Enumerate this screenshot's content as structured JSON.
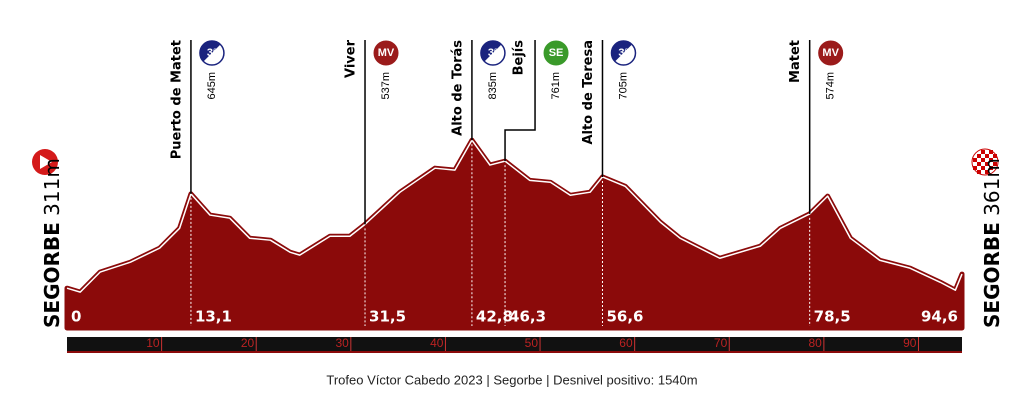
{
  "chart_data": {
    "type": "area",
    "color": "#8b0a0a",
    "xlim": [
      0,
      94.6
    ],
    "ylim": [
      170,
      1190
    ],
    "x": [
      0,
      1.4,
      3.5,
      6.7,
      9.8,
      11.9,
      13.1,
      15.1,
      17.2,
      19.3,
      21.5,
      23.6,
      24.6,
      27.8,
      29.9,
      31.5,
      35.2,
      38.9,
      41.0,
      42.8,
      44.7,
      46.3,
      48.9,
      51.1,
      53.2,
      55.3,
      56.6,
      59.0,
      62.7,
      64.8,
      69.0,
      73.3,
      75.4,
      78.5,
      80.4,
      82.8,
      85.9,
      89.1,
      92.3,
      93.9,
      94.6
    ],
    "values": [
      311,
      297,
      368,
      403,
      453,
      523,
      645,
      570,
      559,
      488,
      481,
      438,
      428,
      495,
      495,
      537,
      651,
      736,
      729,
      835,
      747,
      761,
      693,
      686,
      640,
      651,
      705,
      672,
      545,
      488,
      417,
      460,
      523,
      574,
      637,
      488,
      410,
      382,
      332,
      304,
      361
    ],
    "xticks": [
      10,
      20,
      30,
      40,
      50,
      60,
      70,
      80,
      90
    ],
    "start": {
      "name": "SEGORBE",
      "elevation": {
        "value": 311,
        "label": "311m"
      }
    },
    "finish": {
      "name": "SEGORBE",
      "elevation": {
        "value": 361,
        "label": "361m"
      }
    },
    "km_labels": [
      {
        "value": 0,
        "label": "0"
      },
      {
        "value": 13.1,
        "label": "13,1"
      },
      {
        "value": 31.5,
        "label": "31,5"
      },
      {
        "value": 42.8,
        "label": "42,8"
      },
      {
        "value": 46.3,
        "label": "46,3"
      },
      {
        "value": 56.6,
        "label": "56,6"
      },
      {
        "value": 78.5,
        "label": "78,5"
      },
      {
        "value": 94.6,
        "label": "94,6"
      }
    ],
    "waypoints": [
      {
        "name": "Puerto de Matet",
        "km": 13.1,
        "elevation": {
          "value": 645,
          "label": "645m"
        },
        "badge": "3ª",
        "badge_color": "#1a237e"
      },
      {
        "name": "Viver",
        "km": 31.5,
        "elevation": {
          "value": 537,
          "label": "537m"
        },
        "badge": "MV",
        "badge_color": "#9b1b1b"
      },
      {
        "name": "Alto de Torás",
        "km": 42.8,
        "elevation": {
          "value": 835,
          "label": "835m"
        },
        "badge": "3ª",
        "badge_color": "#1a237e"
      },
      {
        "name": "Bejís",
        "km": 46.3,
        "elevation": {
          "value": 761,
          "label": "761m"
        },
        "badge": "SE",
        "badge_color": "#3a9a2a"
      },
      {
        "name": "Alto de Teresa",
        "km": 56.6,
        "elevation": {
          "value": 705,
          "label": "705m"
        },
        "badge": "3ª",
        "badge_color": "#1a237e"
      },
      {
        "name": "Matet",
        "km": 78.5,
        "elevation": {
          "value": 574,
          "label": "574m"
        },
        "badge": "MV",
        "badge_color": "#9b1b1b"
      }
    ],
    "footer": "Trofeo Víctor Cabedo 2023 | Segorbe | Desnivel positivo: 1540m"
  }
}
